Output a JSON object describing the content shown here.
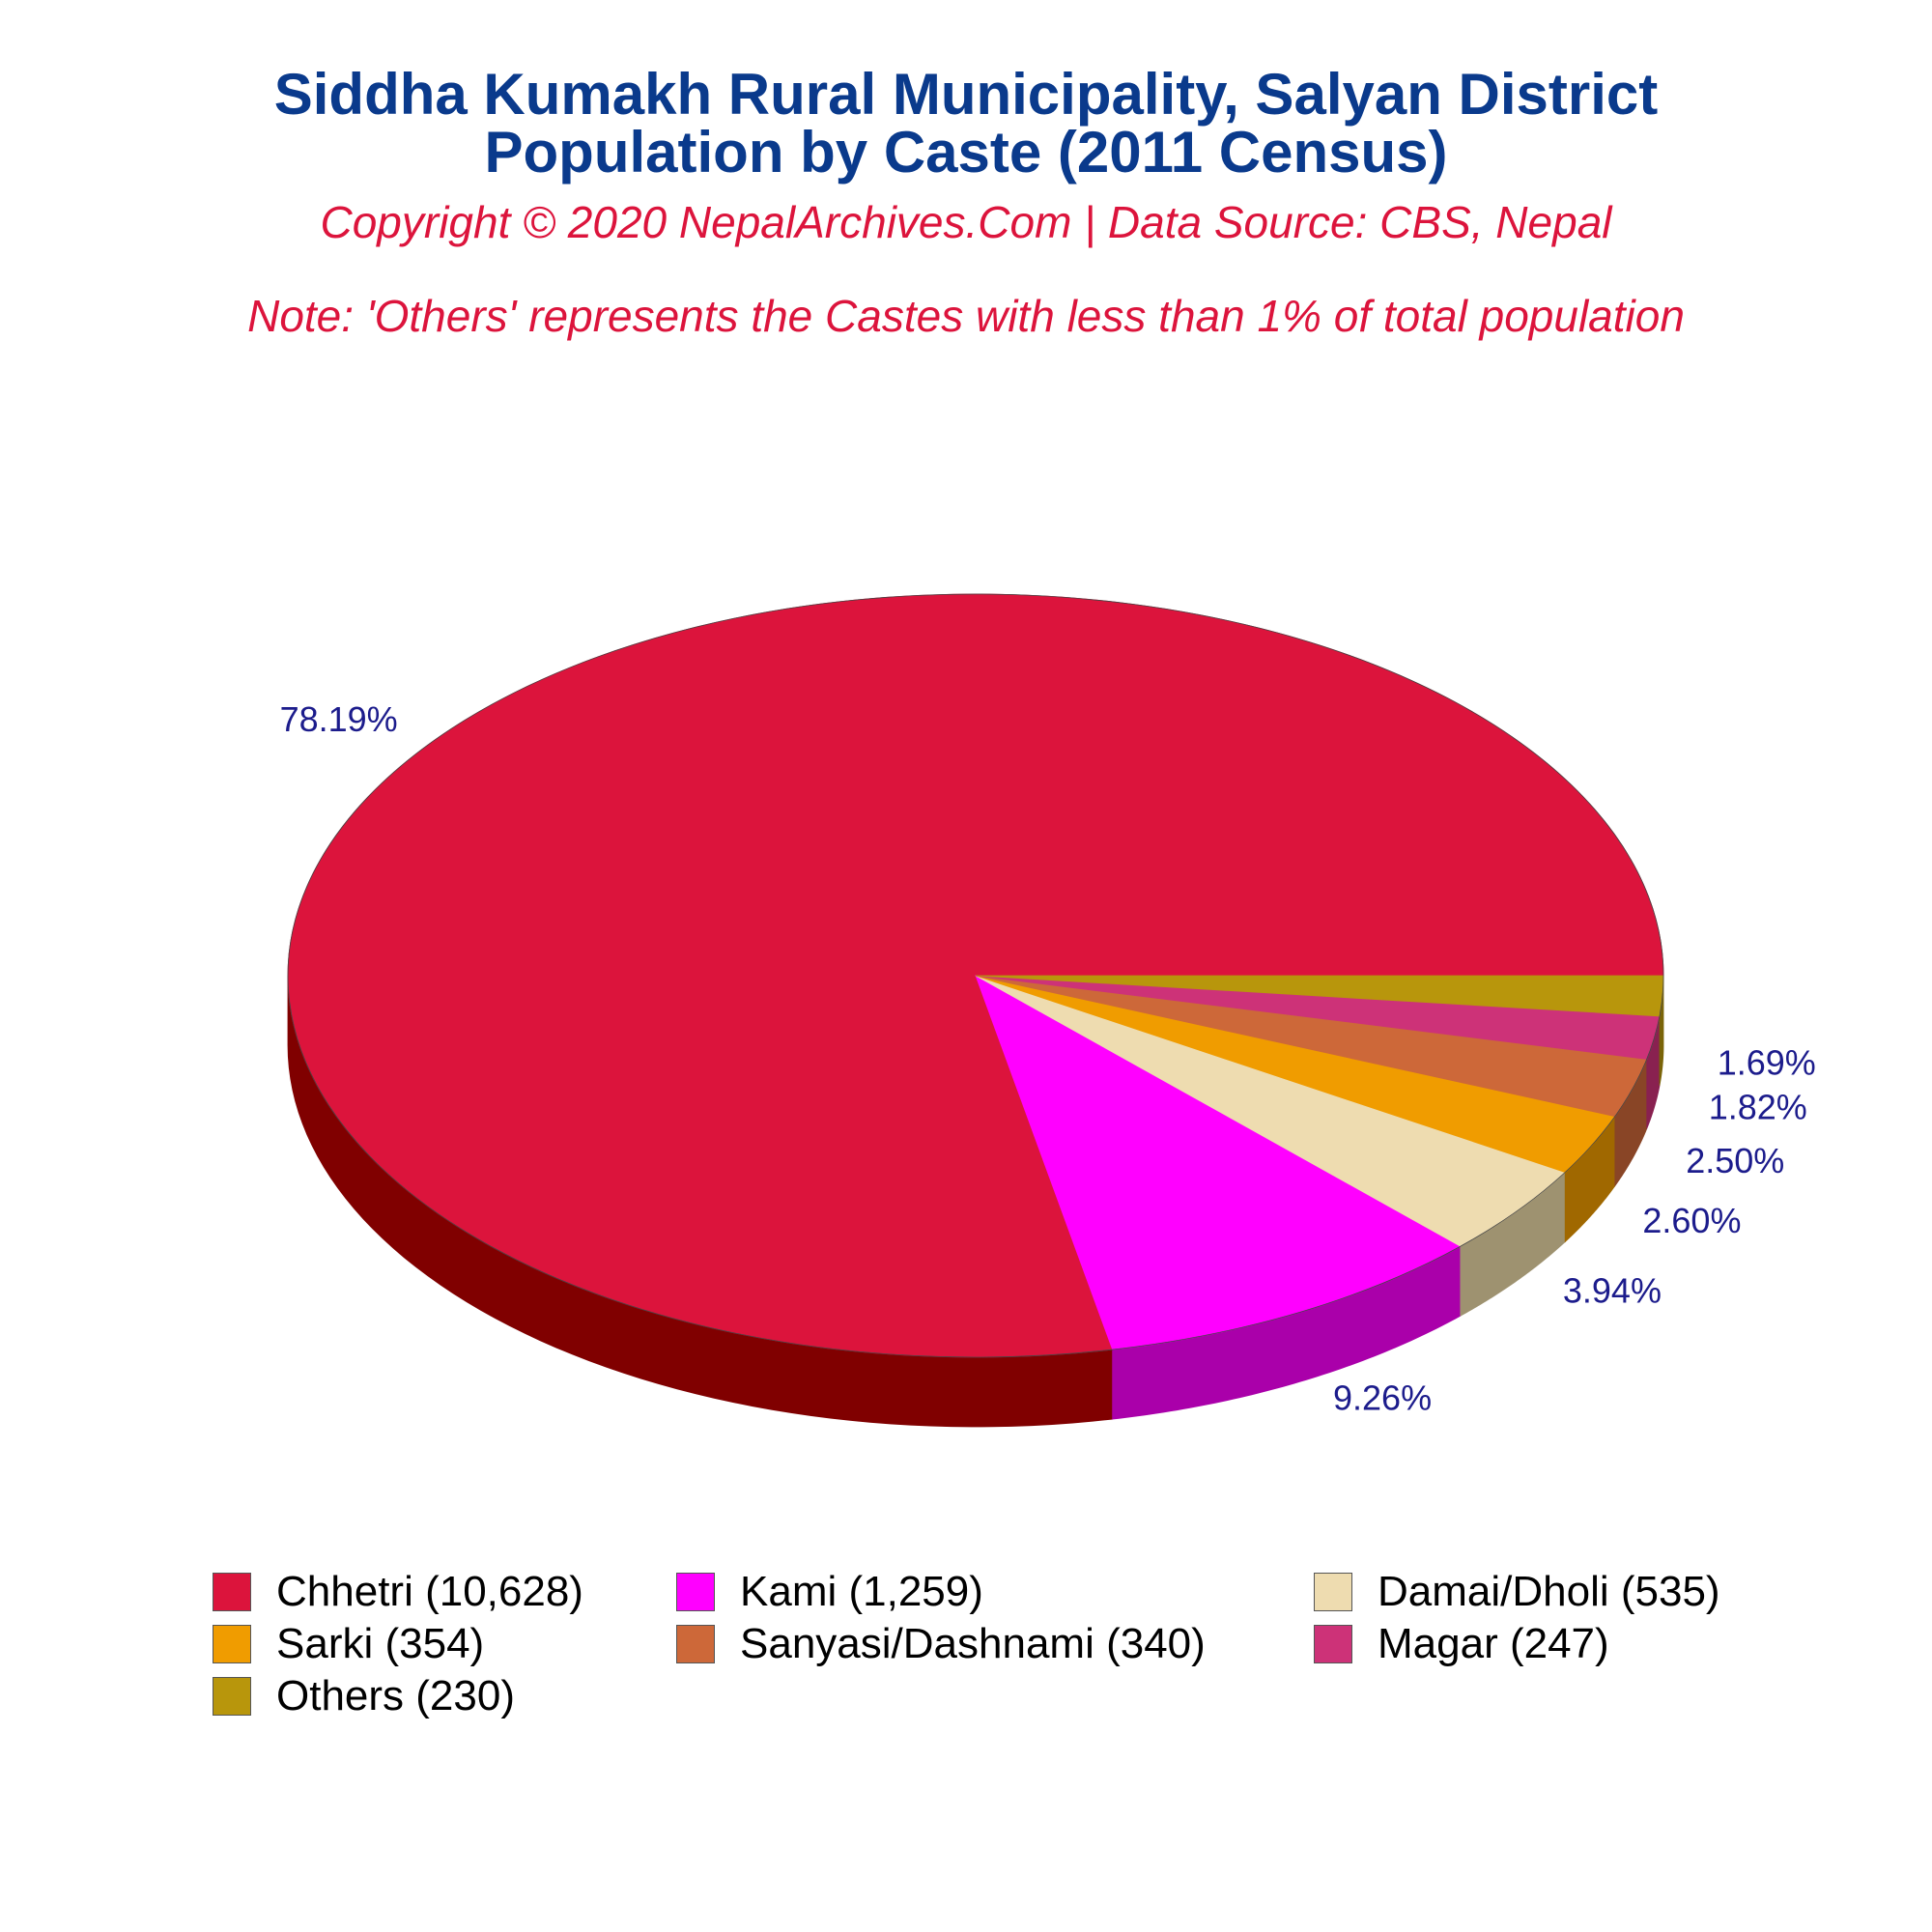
{
  "title_line1": "Siddha Kumakh Rural Municipality, Salyan District",
  "title_line2": "Population by Caste (2011 Census)",
  "copyright": "Copyright © 2020 NepalArchives.Com | Data Source: CBS, Nepal",
  "note": "Note: 'Others' represents the Castes with less than 1% of total population",
  "chart_data": {
    "type": "pie",
    "style": "3d-tilted",
    "start": "counterclockwise from 3 o'clock, largest slice first",
    "slices": [
      {
        "name": "Chhetri",
        "value": 10628,
        "percent_label": "78.19%",
        "legend_label": "Chhetri (10,628)",
        "color": "#dc143c",
        "side_color": "#800000"
      },
      {
        "name": "Kami",
        "value": 1259,
        "percent_label": "9.26%",
        "legend_label": "Kami (1,259)",
        "color": "#ff00ff",
        "side_color": "#aa00aa"
      },
      {
        "name": "Damai/Dholi",
        "value": 535,
        "percent_label": "3.94%",
        "legend_label": "Damai/Dholi (535)",
        "color": "#eedcb0",
        "side_color": "#9e9270"
      },
      {
        "name": "Sarki",
        "value": 354,
        "percent_label": "2.60%",
        "legend_label": "Sarki (354)",
        "color": "#f09c00",
        "side_color": "#a06800"
      },
      {
        "name": "Sanyasi/Dashnami",
        "value": 340,
        "percent_label": "2.50%",
        "legend_label": "Sanyasi/Dashnami (340)",
        "color": "#cd6839",
        "side_color": "#894526"
      },
      {
        "name": "Magar",
        "value": 247,
        "percent_label": "1.82%",
        "legend_label": "Magar (247)",
        "color": "#cd3278",
        "side_color": "#892150"
      },
      {
        "name": "Others",
        "value": 230,
        "percent_label": "1.69%",
        "legend_label": "Others (230)",
        "color": "#b8960c",
        "side_color": "#7a6408"
      }
    ],
    "legend_position": "bottom"
  }
}
